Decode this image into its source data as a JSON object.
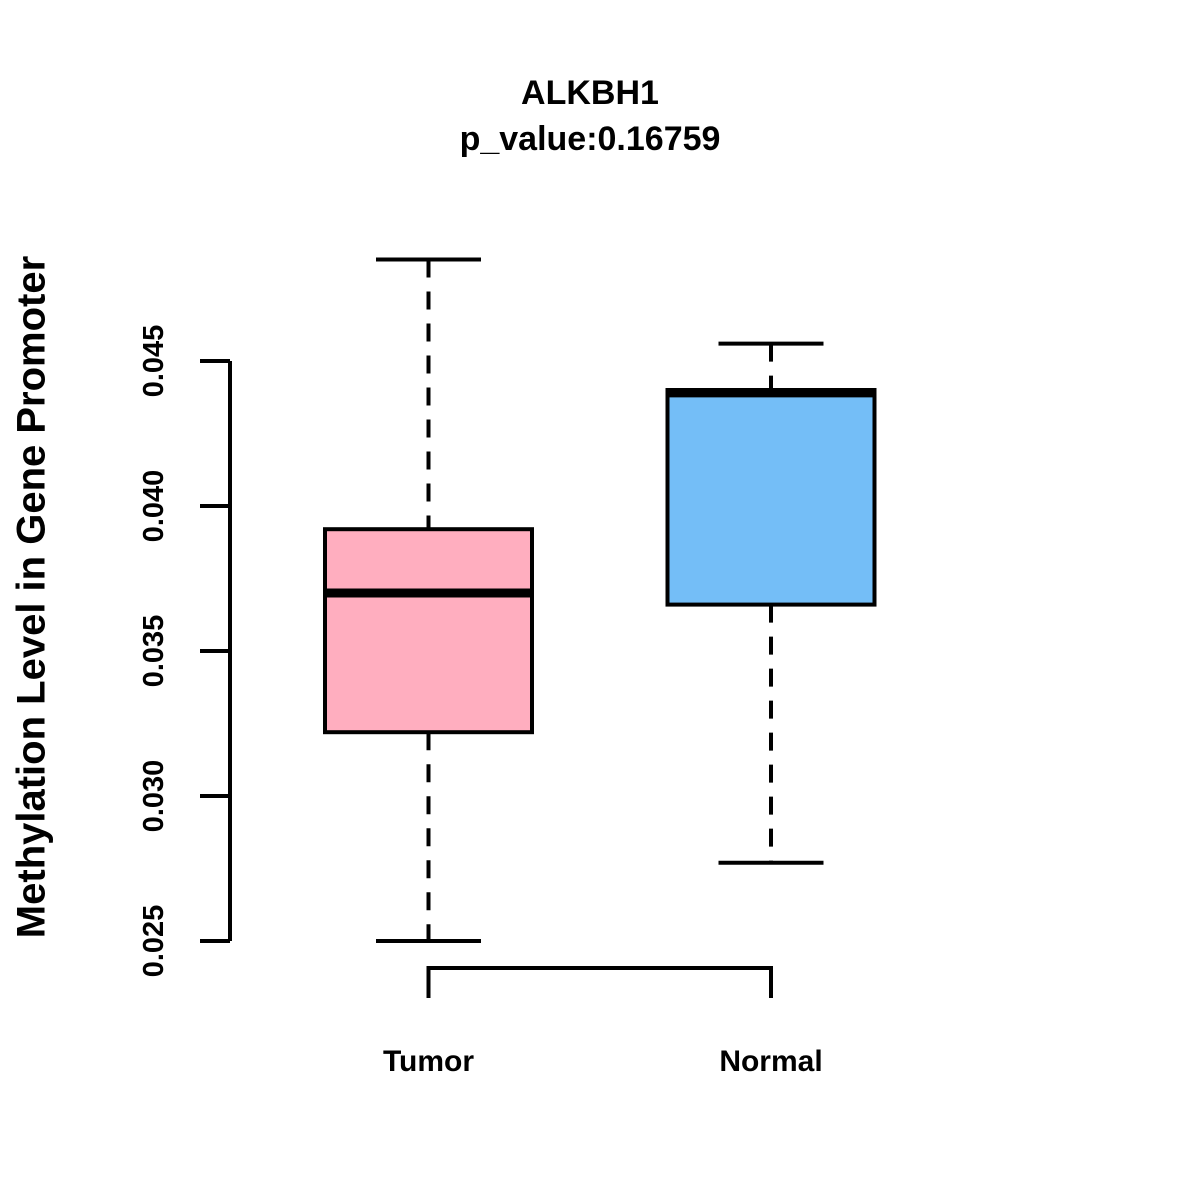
{
  "title": {
    "line1": "ALKBH1",
    "line2": "p_value:0.16759"
  },
  "axes": {
    "y_label": "Methylation Level in Gene Promoter",
    "y_tick_labels": [
      "0.025",
      "0.030",
      "0.035",
      "0.040",
      "0.045"
    ],
    "y_tick_values": [
      0.025,
      0.03,
      0.035,
      0.04,
      0.045
    ]
  },
  "colors": {
    "tumor_fill": "#FFAEBF",
    "normal_fill": "#74BEF7",
    "line": "#000000",
    "background": "#FFFFFF"
  },
  "chart_data": {
    "type": "boxplot",
    "title": "ALKBH1",
    "subtitle": "p_value:0.16759",
    "p_value": 0.16759,
    "ylabel": "Methylation Level in Gene Promoter",
    "xlabel": "",
    "categories": [
      "Tumor",
      "Normal"
    ],
    "ytick_labels": [
      "0.025",
      "0.030",
      "0.035",
      "0.040",
      "0.045"
    ],
    "ytick_values": [
      0.025,
      0.03,
      0.035,
      0.04,
      0.045
    ],
    "ylim": [
      0.0249,
      0.0486
    ],
    "grid": false,
    "legend": "none",
    "series": [
      {
        "name": "Tumor",
        "fill_color": "#FFAEBF",
        "lower_whisker": 0.025,
        "q1": 0.0322,
        "median": 0.037,
        "q3": 0.0392,
        "upper_whisker": 0.0485
      },
      {
        "name": "Normal",
        "fill_color": "#74BEF7",
        "lower_whisker": 0.0277,
        "q1": 0.0366,
        "median": 0.0439,
        "q3": 0.044,
        "upper_whisker": 0.0456
      }
    ]
  }
}
